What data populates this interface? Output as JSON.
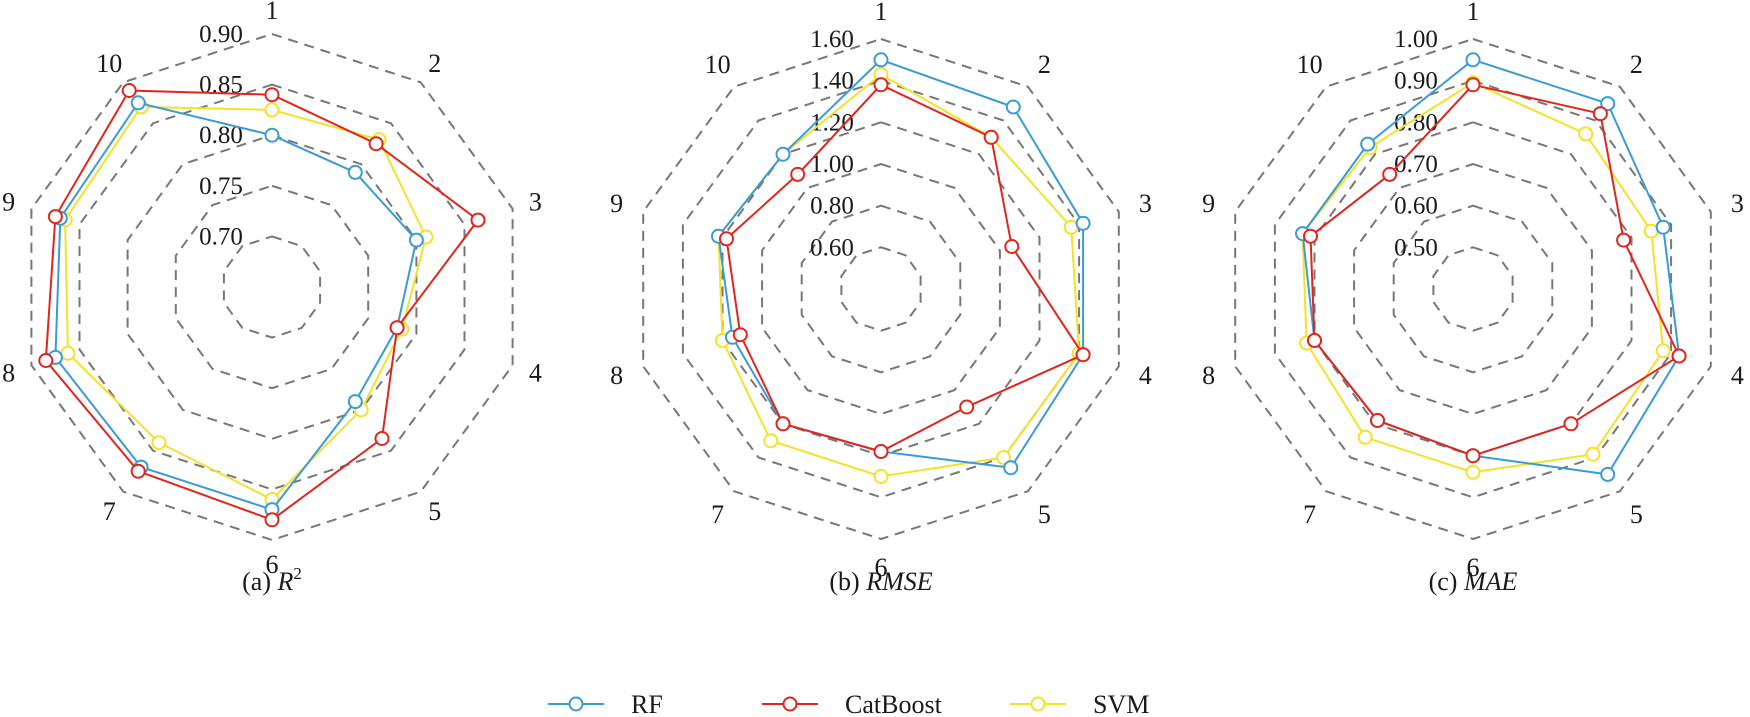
{
  "chart_data": [
    {
      "type": "radar",
      "metric": "R2",
      "caption_prefix": "(a) ",
      "caption_var": "R",
      "caption_sup": "2",
      "categories": [
        "1",
        "2",
        "3",
        "4",
        "5",
        "6",
        "7",
        "8",
        "9",
        "10"
      ],
      "rlim": [
        0.65,
        0.9
      ],
      "ticks": [
        0.7,
        0.75,
        0.8,
        0.85,
        0.9
      ],
      "tick_labels": [
        "0.70",
        "0.75",
        "0.80",
        "0.85",
        "0.90"
      ],
      "series": [
        {
          "name": "RF",
          "values": [
            0.8,
            0.79,
            0.8,
            0.78,
            0.79,
            0.87,
            0.87,
            0.875,
            0.87,
            0.875
          ]
        },
        {
          "name": "CatBoost",
          "values": [
            0.84,
            0.825,
            0.864,
            0.78,
            0.835,
            0.88,
            0.875,
            0.885,
            0.875,
            0.89
          ]
        },
        {
          "name": "SVM",
          "values": [
            0.825,
            0.83,
            0.81,
            0.785,
            0.8,
            0.86,
            0.84,
            0.862,
            0.865,
            0.87
          ]
        }
      ]
    },
    {
      "type": "radar",
      "metric": "RMSE",
      "caption_prefix": "(b) ",
      "caption_var": "RMSE",
      "caption_sup": "",
      "categories": [
        "1",
        "2",
        "3",
        "4",
        "5",
        "6",
        "7",
        "8",
        "9",
        "10"
      ],
      "rlim": [
        0.4,
        1.6
      ],
      "ticks": [
        0.6,
        0.8,
        1.0,
        1.2,
        1.4,
        1.6
      ],
      "tick_labels": [
        "0.60",
        "0.80",
        "1.00",
        "1.20",
        "1.40",
        "1.60"
      ],
      "series": [
        {
          "name": "RF",
          "values": [
            1.5,
            1.48,
            1.42,
            1.42,
            1.46,
            1.18,
            1.2,
            1.15,
            1.22,
            1.2
          ]
        },
        {
          "name": "CatBoost",
          "values": [
            1.38,
            1.3,
            1.06,
            1.42,
            1.1,
            1.18,
            1.2,
            1.11,
            1.18,
            1.08
          ]
        },
        {
          "name": "SVM",
          "values": [
            1.43,
            1.3,
            1.36,
            1.4,
            1.4,
            1.3,
            1.3,
            1.2,
            1.22,
            1.2
          ]
        }
      ]
    },
    {
      "type": "radar",
      "metric": "MAE",
      "caption_prefix": "(c) ",
      "caption_var": "MAE",
      "caption_sup": "",
      "categories": [
        "1",
        "2",
        "3",
        "4",
        "5",
        "6",
        "7",
        "8",
        "9",
        "10"
      ],
      "rlim": [
        0.4,
        1.0
      ],
      "ticks": [
        0.5,
        0.6,
        0.7,
        0.8,
        0.9,
        1.0
      ],
      "tick_labels": [
        "0.50",
        "0.60",
        "0.70",
        "0.80",
        "0.90",
        "1.00"
      ],
      "series": [
        {
          "name": "RF",
          "values": [
            0.95,
            0.95,
            0.88,
            0.92,
            0.95,
            0.8,
            0.79,
            0.8,
            0.83,
            0.83
          ]
        },
        {
          "name": "CatBoost",
          "values": [
            0.89,
            0.92,
            0.78,
            0.92,
            0.8,
            0.8,
            0.79,
            0.8,
            0.81,
            0.74
          ]
        },
        {
          "name": "SVM",
          "values": [
            0.895,
            0.86,
            0.85,
            0.88,
            0.89,
            0.84,
            0.84,
            0.82,
            0.83,
            0.82
          ]
        }
      ]
    }
  ],
  "legend": [
    {
      "name": "RF",
      "color": "#3a9bd5"
    },
    {
      "name": "CatBoost",
      "color": "#e0261c"
    },
    {
      "name": "SVM",
      "color": "#f5e02a"
    }
  ],
  "colors": {
    "RF": "#3a9bd5",
    "CatBoost": "#e0261c",
    "SVM": "#f5e02a",
    "grid": "#777777"
  }
}
